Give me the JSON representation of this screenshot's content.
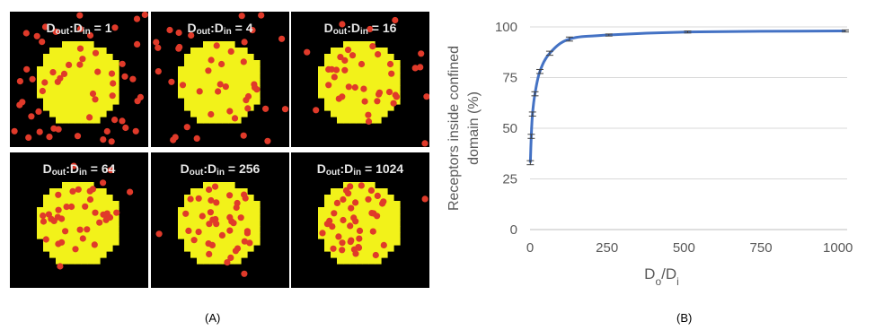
{
  "panel_a": {
    "caption": "(A)",
    "label_prefix": "D",
    "sub_out": "out",
    "sub_in": "in",
    "colors": {
      "background": "#000000",
      "domain": "#f2f21a",
      "receptor": "#e03a2a"
    },
    "tiles": [
      {
        "ratio": "1"
      },
      {
        "ratio": "4"
      },
      {
        "ratio": "16"
      },
      {
        "ratio": "64"
      },
      {
        "ratio": "256"
      },
      {
        "ratio": "1024"
      }
    ]
  },
  "panel_b": {
    "caption": "(B)",
    "chart_data": {
      "type": "line",
      "title": "",
      "ylabel": "Receptors inside confined domain (%)",
      "xlabel_main": "D",
      "xlabel_sub1": "o",
      "xlabel_sep": "/D",
      "xlabel_sub2": "i",
      "xlim": [
        0,
        1030
      ],
      "ylim": [
        0,
        100
      ],
      "xticks": [
        0,
        250,
        500,
        750,
        1000
      ],
      "yticks": [
        0,
        25,
        50,
        75,
        100
      ],
      "grid": "horizontal",
      "legend": "none",
      "color": "#4472c4",
      "series": [
        {
          "x": [
            1,
            4,
            8,
            16,
            32,
            64,
            128,
            256,
            512,
            1024
          ],
          "y": [
            33,
            46,
            57,
            67,
            78,
            87,
            94,
            96,
            97.5,
            98
          ],
          "error": [
            1,
            1,
            1,
            1,
            1,
            1,
            1,
            0.5,
            0.5,
            0.5
          ]
        }
      ]
    }
  }
}
